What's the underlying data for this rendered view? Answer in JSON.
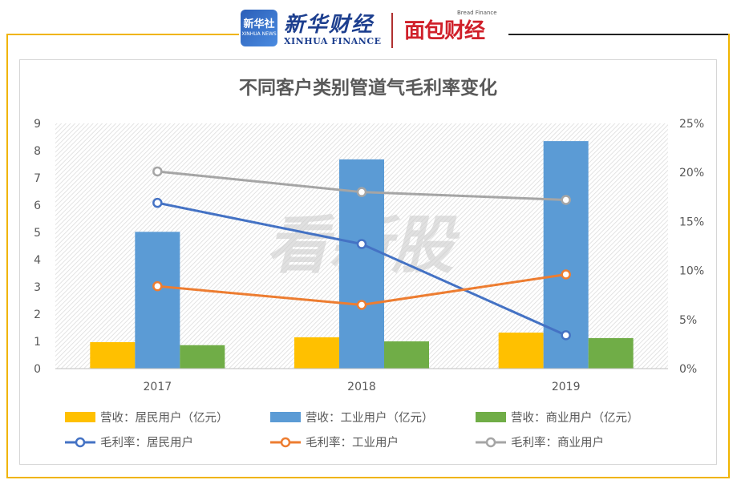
{
  "brand": {
    "xinhua_badge_cn": "新华社",
    "xinhua_badge_en": "XINHUA NEWS",
    "xinhua_finance_cn": "新华财经",
    "xinhua_finance_en": "XINHUA FINANCE",
    "mianbao_cn": "面包财经",
    "mianbao_en": "Bread Finance",
    "watermark": "看新股"
  },
  "colors": {
    "frame": "#f0b400",
    "bar_residential": "#ffc000",
    "bar_industrial": "#5b9bd5",
    "bar_commercial": "#70ad47",
    "line_residential": "#4472c4",
    "line_industrial": "#ed7d31",
    "line_commercial": "#a5a5a5"
  },
  "chart_data": {
    "type": "bar",
    "title": "不同客户类别管道气毛利率变化",
    "categories": [
      "2017",
      "2018",
      "2019"
    ],
    "y_left": {
      "min": 0,
      "max": 9,
      "ticks": [
        "0",
        "1",
        "2",
        "3",
        "4",
        "5",
        "6",
        "7",
        "8",
        "9"
      ]
    },
    "y_right": {
      "min": 0,
      "max": 25,
      "ticks": [
        "0%",
        "5%",
        "10%",
        "15%",
        "20%",
        "25%"
      ]
    },
    "bar_series": [
      {
        "name": "营收：居民用户（亿元）",
        "values": [
          0.97,
          1.15,
          1.32
        ]
      },
      {
        "name": "营收：工业用户（亿元）",
        "values": [
          5.02,
          7.68,
          8.35
        ]
      },
      {
        "name": "营收：商业用户（亿元）",
        "values": [
          0.86,
          1.0,
          1.12
        ]
      }
    ],
    "line_series": [
      {
        "name": "毛利率：居民用户",
        "values": [
          16.9,
          12.7,
          3.4
        ]
      },
      {
        "name": "毛利率：工业用户",
        "values": [
          8.4,
          6.5,
          9.6
        ]
      },
      {
        "name": "毛利率：商业用户",
        "values": [
          20.1,
          18.0,
          17.2
        ]
      }
    ],
    "grid": false,
    "legend_position": "bottom"
  }
}
